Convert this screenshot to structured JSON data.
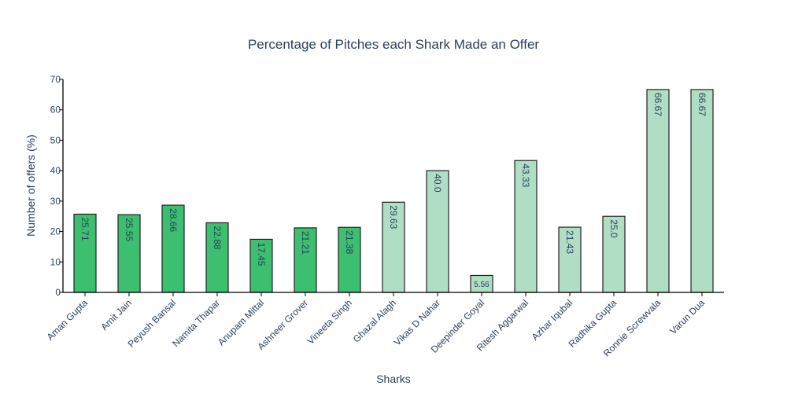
{
  "chart_data": {
    "type": "bar",
    "title": "Percentage of Pitches each Shark Made an Offer",
    "xlabel": "Sharks",
    "ylabel": "Number of offers (%)",
    "ylim": [
      0,
      70
    ],
    "yticks": [
      0,
      10,
      20,
      30,
      40,
      50,
      60,
      70
    ],
    "grid": false,
    "categories": [
      "Aman Gupta",
      "Amit Jain",
      "Peyush Bansal",
      "Namita Thapar",
      "Anupam Mittal",
      "Ashneer Grover",
      "Vineeta Singh",
      "Ghazal Alagh",
      "Vikas D Nahar",
      "Deepinder Goyal",
      "Ritesh Aggarwal",
      "Azhar Iqubal",
      "Radhika Gupta",
      "Ronnie Screwvala",
      "Varun Dua"
    ],
    "values": [
      25.71,
      25.55,
      28.66,
      22.88,
      17.45,
      21.21,
      21.38,
      29.63,
      40.0,
      5.56,
      43.33,
      21.43,
      25.0,
      66.67,
      66.67
    ],
    "value_labels": [
      "25.71",
      "25.55",
      "28.66",
      "22.88",
      "17.45",
      "21.21",
      "21.38",
      "29.63",
      "40.0",
      "5.56",
      "43.33",
      "21.43",
      "25.0",
      "66.67",
      "66.67"
    ],
    "bar_colors": [
      "#3cbf6e",
      "#3cbf6e",
      "#3cbf6e",
      "#3cbf6e",
      "#3cbf6e",
      "#3cbf6e",
      "#3cbf6e",
      "#b0dec5",
      "#b0dec5",
      "#b0dec5",
      "#b0dec5",
      "#b0dec5",
      "#b0dec5",
      "#b0dec5",
      "#b0dec5"
    ],
    "bar_outline_color": "#222222"
  }
}
